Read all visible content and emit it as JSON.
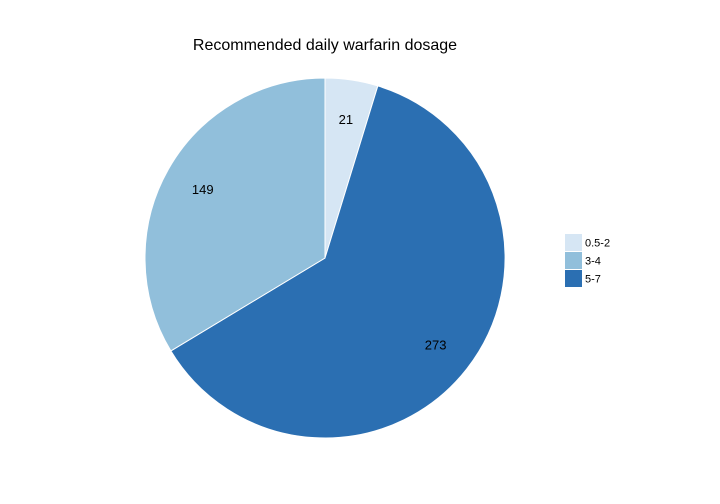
{
  "chart_data": {
    "type": "pie",
    "title": "Recommended daily warfarin dosage",
    "legend_placement": "right",
    "categories": [
      "0.5-2",
      "3-4",
      "5-7"
    ],
    "values": [
      21,
      149,
      273
    ],
    "colors": [
      "#d6e6f4",
      "#91bfdb",
      "#2b6fb2"
    ],
    "data_labels": [
      "21",
      "149",
      "273"
    ],
    "start_angle": "12 o'clock",
    "direction": "clockwise",
    "slice_order": [
      "0.5-2",
      "5-7",
      "3-4"
    ]
  }
}
